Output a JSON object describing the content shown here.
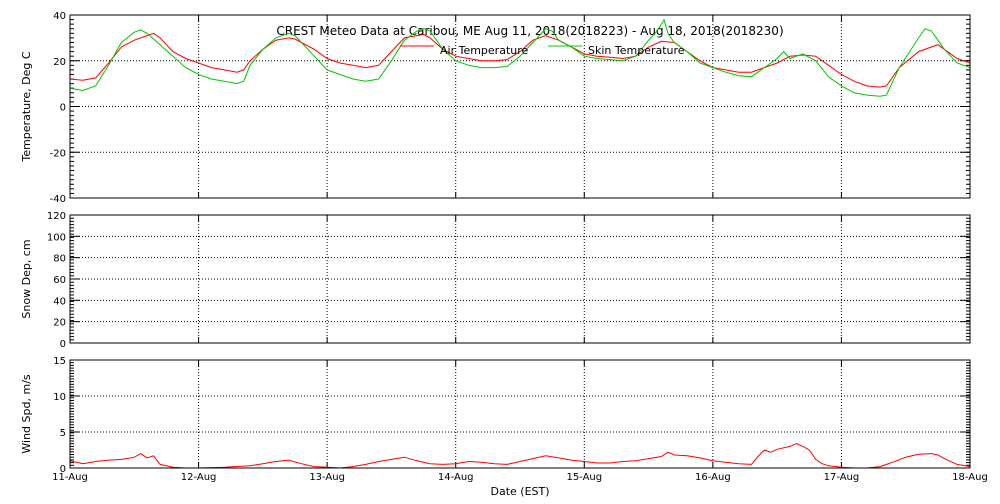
{
  "chart_data": {
    "type": "line",
    "title": "CREST Meteo Data at Caribou, ME   Aug 11, 2018(2018223) - Aug 18, 2018(2018230)",
    "xlabel": "Date (EST)",
    "x_ticks": [
      "11-Aug",
      "12-Aug",
      "13-Aug",
      "14-Aug",
      "15-Aug",
      "16-Aug",
      "17-Aug",
      "18-Aug"
    ],
    "x_range_days": [
      0,
      7
    ],
    "grid": true,
    "panels": [
      {
        "ylabel": "Temperature, Deg C",
        "ylim": [
          -40,
          40
        ],
        "yticks": [
          -40,
          -20,
          0,
          20,
          40
        ],
        "legend_position": "top-center",
        "series": [
          {
            "name": "Air Temperature",
            "color": "#ff0000",
            "points": [
              [
                0,
                12
              ],
              [
                0.1,
                11.5
              ],
              [
                0.2,
                12.5
              ],
              [
                0.3,
                19
              ],
              [
                0.4,
                26
              ],
              [
                0.5,
                29
              ],
              [
                0.55,
                30
              ],
              [
                0.6,
                31
              ],
              [
                0.65,
                32
              ],
              [
                0.7,
                30
              ],
              [
                0.75,
                27
              ],
              [
                0.8,
                24
              ],
              [
                0.9,
                21
              ],
              [
                1.0,
                19
              ],
              [
                1.1,
                17
              ],
              [
                1.2,
                16
              ],
              [
                1.3,
                15
              ],
              [
                1.35,
                16
              ],
              [
                1.4,
                20
              ],
              [
                1.5,
                25
              ],
              [
                1.6,
                29
              ],
              [
                1.7,
                30
              ],
              [
                1.75,
                29.5
              ],
              [
                1.8,
                28
              ],
              [
                1.9,
                25
              ],
              [
                2.0,
                21
              ],
              [
                2.1,
                19
              ],
              [
                2.2,
                18
              ],
              [
                2.3,
                17
              ],
              [
                2.4,
                18
              ],
              [
                2.5,
                24
              ],
              [
                2.6,
                30
              ],
              [
                2.7,
                31
              ],
              [
                2.75,
                31.5
              ],
              [
                2.8,
                30
              ],
              [
                2.9,
                25
              ],
              [
                3.0,
                22
              ],
              [
                3.1,
                21
              ],
              [
                3.2,
                20
              ],
              [
                3.3,
                20
              ],
              [
                3.4,
                20.5
              ],
              [
                3.5,
                24
              ],
              [
                3.6,
                29
              ],
              [
                3.7,
                31
              ],
              [
                3.8,
                29
              ],
              [
                3.9,
                26
              ],
              [
                4.0,
                23
              ],
              [
                4.1,
                22
              ],
              [
                4.2,
                21.5
              ],
              [
                4.3,
                21
              ],
              [
                4.4,
                22
              ],
              [
                4.5,
                26
              ],
              [
                4.6,
                28.5
              ],
              [
                4.7,
                28
              ],
              [
                4.8,
                24
              ],
              [
                4.9,
                20
              ],
              [
                5.0,
                17
              ],
              [
                5.1,
                16
              ],
              [
                5.2,
                15
              ],
              [
                5.3,
                15
              ],
              [
                5.4,
                17
              ],
              [
                5.5,
                19
              ],
              [
                5.6,
                22
              ],
              [
                5.7,
                22.5
              ],
              [
                5.8,
                22
              ],
              [
                5.9,
                18
              ],
              [
                6.0,
                14
              ],
              [
                6.1,
                11
              ],
              [
                6.2,
                9
              ],
              [
                6.3,
                8.5
              ],
              [
                6.35,
                9
              ],
              [
                6.45,
                17
              ],
              [
                6.6,
                24
              ],
              [
                6.7,
                26
              ],
              [
                6.75,
                27
              ],
              [
                6.8,
                25
              ],
              [
                6.9,
                21
              ],
              [
                7.0,
                19
              ]
            ]
          },
          {
            "name": "Skin Temperature",
            "color": "#00c800",
            "points": [
              [
                0,
                8
              ],
              [
                0.1,
                7
              ],
              [
                0.2,
                9
              ],
              [
                0.3,
                18
              ],
              [
                0.4,
                28
              ],
              [
                0.5,
                32.5
              ],
              [
                0.55,
                33.5
              ],
              [
                0.6,
                32
              ],
              [
                0.7,
                27
              ],
              [
                0.8,
                22
              ],
              [
                0.9,
                17
              ],
              [
                1.0,
                14
              ],
              [
                1.1,
                12
              ],
              [
                1.2,
                11
              ],
              [
                1.3,
                10
              ],
              [
                1.35,
                11
              ],
              [
                1.4,
                18
              ],
              [
                1.5,
                25
              ],
              [
                1.6,
                30
              ],
              [
                1.7,
                32
              ],
              [
                1.75,
                31
              ],
              [
                1.8,
                28
              ],
              [
                1.9,
                22
              ],
              [
                2.0,
                16
              ],
              [
                2.1,
                14
              ],
              [
                2.2,
                12
              ],
              [
                2.3,
                11
              ],
              [
                2.4,
                12
              ],
              [
                2.5,
                20
              ],
              [
                2.6,
                29
              ],
              [
                2.7,
                33
              ],
              [
                2.75,
                34
              ],
              [
                2.8,
                33
              ],
              [
                2.9,
                25
              ],
              [
                3.0,
                20
              ],
              [
                3.1,
                18
              ],
              [
                3.2,
                17
              ],
              [
                3.3,
                17
              ],
              [
                3.4,
                17.5
              ],
              [
                3.5,
                22
              ],
              [
                3.6,
                28
              ],
              [
                3.7,
                34
              ],
              [
                3.75,
                33
              ],
              [
                3.8,
                29
              ],
              [
                3.9,
                26
              ],
              [
                4.0,
                22
              ],
              [
                4.1,
                21
              ],
              [
                4.2,
                20.5
              ],
              [
                4.3,
                20
              ],
              [
                4.4,
                22
              ],
              [
                4.5,
                29
              ],
              [
                4.55,
                32
              ],
              [
                4.6,
                36
              ],
              [
                4.62,
                38
              ],
              [
                4.65,
                32
              ],
              [
                4.7,
                28
              ],
              [
                4.8,
                24
              ],
              [
                4.9,
                19
              ],
              [
                5.0,
                17
              ],
              [
                5.1,
                15
              ],
              [
                5.2,
                13.5
              ],
              [
                5.3,
                13
              ],
              [
                5.4,
                17
              ],
              [
                5.5,
                21
              ],
              [
                5.55,
                24
              ],
              [
                5.6,
                21
              ],
              [
                5.7,
                23
              ],
              [
                5.8,
                20
              ],
              [
                5.9,
                13
              ],
              [
                6.0,
                9
              ],
              [
                6.1,
                6
              ],
              [
                6.2,
                5
              ],
              [
                6.3,
                4.5
              ],
              [
                6.35,
                5
              ],
              [
                6.45,
                17
              ],
              [
                6.6,
                30
              ],
              [
                6.65,
                34
              ],
              [
                6.7,
                33
              ],
              [
                6.75,
                29
              ],
              [
                6.8,
                25
              ],
              [
                6.9,
                19
              ],
              [
                7.0,
                17
              ]
            ]
          }
        ]
      },
      {
        "ylabel": "Snow Dep, cm",
        "ylim": [
          0,
          120
        ],
        "yticks": [
          0,
          20,
          40,
          60,
          80,
          100,
          120
        ],
        "series": [
          {
            "name": "",
            "color": "#0000ff",
            "points": [
              [
                0,
                0
              ],
              [
                7,
                0
              ]
            ]
          }
        ]
      },
      {
        "ylabel": "Wind Spd, m/s",
        "ylim": [
          0,
          15
        ],
        "yticks": [
          0,
          5,
          10,
          15
        ],
        "series": [
          {
            "name": "",
            "color": "#ff0000",
            "points": [
              [
                0,
                1
              ],
              [
                0.1,
                0.6
              ],
              [
                0.2,
                0.9
              ],
              [
                0.3,
                1.1
              ],
              [
                0.4,
                1.2
              ],
              [
                0.5,
                1.5
              ],
              [
                0.55,
                2.0
              ],
              [
                0.6,
                1.4
              ],
              [
                0.65,
                1.7
              ],
              [
                0.7,
                0.5
              ],
              [
                0.8,
                0.1
              ],
              [
                0.9,
                0
              ],
              [
                1.0,
                0
              ],
              [
                1.2,
                0.1
              ],
              [
                1.4,
                0.3
              ],
              [
                1.5,
                0.6
              ],
              [
                1.6,
                0.9
              ],
              [
                1.7,
                1.1
              ],
              [
                1.8,
                0.6
              ],
              [
                1.9,
                0.2
              ],
              [
                2.0,
                0.1
              ],
              [
                2.1,
                0
              ],
              [
                2.2,
                0.2
              ],
              [
                2.3,
                0.5
              ],
              [
                2.4,
                0.9
              ],
              [
                2.5,
                1.2
              ],
              [
                2.6,
                1.5
              ],
              [
                2.7,
                1.0
              ],
              [
                2.8,
                0.6
              ],
              [
                2.9,
                0.5
              ],
              [
                3.0,
                0.6
              ],
              [
                3.1,
                0.9
              ],
              [
                3.2,
                0.8
              ],
              [
                3.3,
                0.6
              ],
              [
                3.4,
                0.5
              ],
              [
                3.5,
                0.9
              ],
              [
                3.6,
                1.3
              ],
              [
                3.7,
                1.7
              ],
              [
                3.8,
                1.4
              ],
              [
                3.9,
                1.1
              ],
              [
                4.0,
                0.9
              ],
              [
                4.1,
                0.7
              ],
              [
                4.2,
                0.7
              ],
              [
                4.3,
                0.9
              ],
              [
                4.4,
                1.0
              ],
              [
                4.5,
                1.3
              ],
              [
                4.6,
                1.6
              ],
              [
                4.65,
                2.2
              ],
              [
                4.7,
                1.8
              ],
              [
                4.8,
                1.7
              ],
              [
                4.9,
                1.4
              ],
              [
                5.0,
                1.0
              ],
              [
                5.1,
                0.8
              ],
              [
                5.2,
                0.6
              ],
              [
                5.3,
                0.5
              ],
              [
                5.35,
                1.6
              ],
              [
                5.4,
                2.5
              ],
              [
                5.45,
                2.2
              ],
              [
                5.5,
                2.6
              ],
              [
                5.6,
                3.0
              ],
              [
                5.65,
                3.4
              ],
              [
                5.7,
                3.0
              ],
              [
                5.75,
                2.5
              ],
              [
                5.8,
                1.2
              ],
              [
                5.85,
                0.6
              ],
              [
                5.9,
                0.3
              ],
              [
                6.0,
                0.1
              ],
              [
                6.1,
                0
              ],
              [
                6.2,
                0
              ],
              [
                6.3,
                0.2
              ],
              [
                6.4,
                0.8
              ],
              [
                6.5,
                1.5
              ],
              [
                6.6,
                1.9
              ],
              [
                6.7,
                2.0
              ],
              [
                6.75,
                1.8
              ],
              [
                6.8,
                1.3
              ],
              [
                6.9,
                0.5
              ],
              [
                7.0,
                0.2
              ]
            ]
          }
        ]
      }
    ]
  }
}
